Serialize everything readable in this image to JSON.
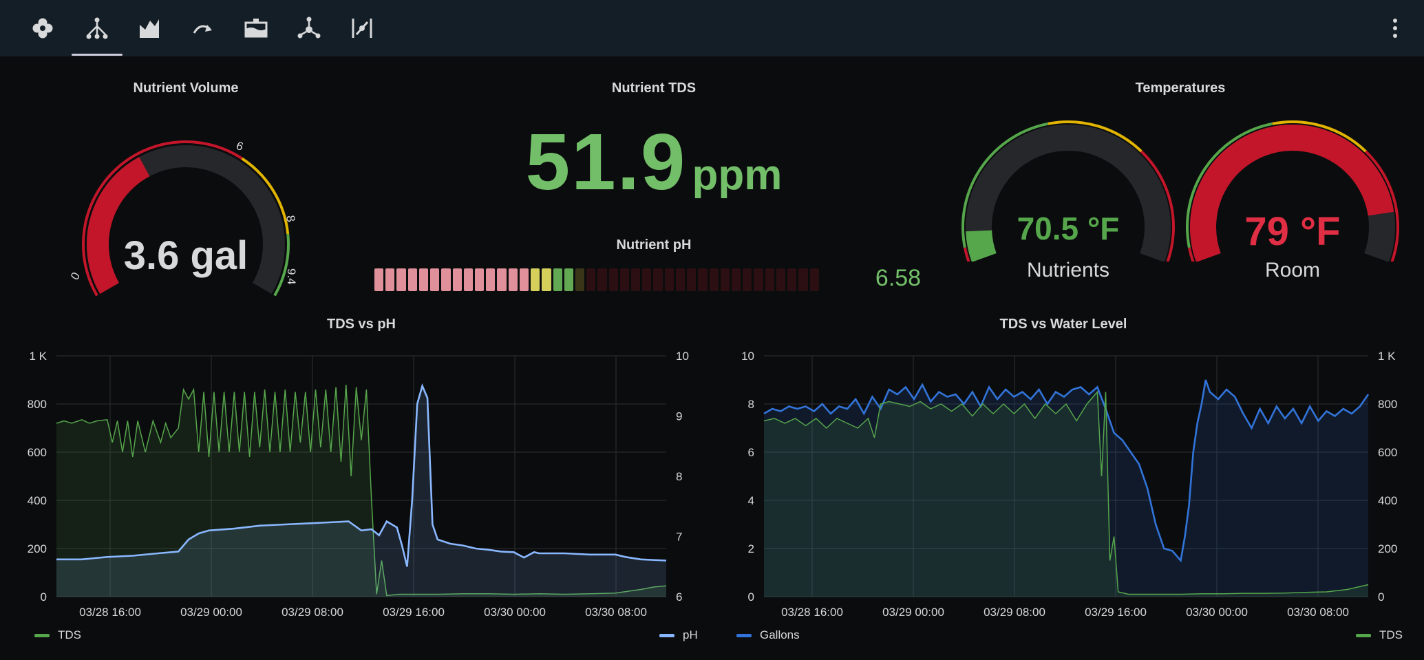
{
  "tabs": [
    {
      "icon": "flower-icon"
    },
    {
      "icon": "hierarchy-icon",
      "active": true
    },
    {
      "icon": "area-chart-icon"
    },
    {
      "icon": "redo-arrow-icon"
    },
    {
      "icon": "tank-icon"
    },
    {
      "icon": "network-hub-icon"
    },
    {
      "icon": "slash-needle-icon"
    }
  ],
  "panels": {
    "volume": {
      "title": "Nutrient Volume",
      "value": "3.6 gal",
      "value_color": "#e02f44",
      "gauge": {
        "min": 0,
        "max": 9.4,
        "value": 3.6,
        "ticks": [
          "0",
          "6",
          "8",
          "9.4"
        ]
      }
    },
    "tds": {
      "title": "Nutrient TDS",
      "value": "51.9",
      "unit": "ppm"
    },
    "ph": {
      "title": "Nutrient pH",
      "value": "6.58",
      "total_cells": 40,
      "filled_cells": 18,
      "cell_colors": {
        "red": "#e0909a",
        "yellow": "#d5cf5c",
        "green": "#63a954",
        "empty": "#2c0f12",
        "empty_yellow": "#3a3519"
      }
    },
    "temps": {
      "title": "Temperatures",
      "nutrients": {
        "value": "70.5 °F",
        "label": "Nutrients",
        "fraction": 0.08,
        "color": "#56a64b"
      },
      "room": {
        "value": "79 °F",
        "label": "Room",
        "fraction": 0.87,
        "color": "#c4162a"
      }
    }
  },
  "chart_data": [
    {
      "type": "line",
      "title": "TDS vs pH",
      "x_ticks": [
        "03/28 16:00",
        "03/29 00:00",
        "03/29 08:00",
        "03/29 16:00",
        "03/30 00:00",
        "03/30 08:00"
      ],
      "y_left_ticks": [
        "0",
        "200",
        "400",
        "600",
        "800",
        "1 K"
      ],
      "y_right_ticks": [
        "6",
        "7",
        "8",
        "9",
        "10"
      ],
      "ylim_left": [
        0,
        1000
      ],
      "ylim_right": [
        6,
        10
      ],
      "grid": true,
      "legend_position": "bottom",
      "series": [
        {
          "name": "TDS",
          "axis": "left",
          "color": "#56a64b",
          "style": "area",
          "points": [
            [
              0,
              720
            ],
            [
              0.3,
              730
            ],
            [
              0.6,
              720
            ],
            [
              1,
              735
            ],
            [
              1.3,
              720
            ],
            [
              1.6,
              730
            ],
            [
              2,
              735
            ],
            [
              2.2,
              640
            ],
            [
              2.4,
              730
            ],
            [
              2.6,
              600
            ],
            [
              2.8,
              730
            ],
            [
              3,
              580
            ],
            [
              3.2,
              730
            ],
            [
              3.5,
              600
            ],
            [
              3.8,
              730
            ],
            [
              4.1,
              640
            ],
            [
              4.3,
              720
            ],
            [
              4.5,
              660
            ],
            [
              4.8,
              700
            ],
            [
              5,
              860
            ],
            [
              5.2,
              820
            ],
            [
              5.4,
              860
            ],
            [
              5.6,
              600
            ],
            [
              5.8,
              850
            ],
            [
              6,
              580
            ],
            [
              6.2,
              850
            ],
            [
              6.4,
              600
            ],
            [
              6.6,
              850
            ],
            [
              6.8,
              600
            ],
            [
              7,
              850
            ],
            [
              7.2,
              600
            ],
            [
              7.4,
              850
            ],
            [
              7.6,
              580
            ],
            [
              7.8,
              850
            ],
            [
              8,
              620
            ],
            [
              8.2,
              860
            ],
            [
              8.4,
              600
            ],
            [
              8.6,
              850
            ],
            [
              8.8,
              600
            ],
            [
              9,
              860
            ],
            [
              9.2,
              600
            ],
            [
              9.4,
              850
            ],
            [
              9.6,
              640
            ],
            [
              9.8,
              850
            ],
            [
              10,
              600
            ],
            [
              10.2,
              860
            ],
            [
              10.4,
              620
            ],
            [
              10.6,
              860
            ],
            [
              10.8,
              600
            ],
            [
              11,
              870
            ],
            [
              11.2,
              560
            ],
            [
              11.4,
              880
            ],
            [
              11.6,
              500
            ],
            [
              11.8,
              870
            ],
            [
              12,
              650
            ],
            [
              12.2,
              860
            ],
            [
              12.4,
              400
            ],
            [
              12.6,
              10
            ],
            [
              12.8,
              150
            ],
            [
              13,
              5
            ],
            [
              13.5,
              10
            ],
            [
              14,
              10
            ],
            [
              15,
              10
            ],
            [
              16,
              12
            ],
            [
              17,
              12
            ],
            [
              18,
              10
            ],
            [
              19,
              12
            ],
            [
              20,
              10
            ],
            [
              21,
              12
            ],
            [
              22,
              15
            ],
            [
              23,
              30
            ],
            [
              23.5,
              40
            ],
            [
              24,
              45
            ]
          ]
        },
        {
          "name": "pH",
          "axis": "right",
          "color": "#8ab8ff",
          "style": "area",
          "points": [
            [
              0,
              6.62
            ],
            [
              1,
              6.62
            ],
            [
              1.5,
              6.64
            ],
            [
              2,
              6.66
            ],
            [
              3,
              6.68
            ],
            [
              4,
              6.72
            ],
            [
              4.8,
              6.75
            ],
            [
              5.2,
              6.95
            ],
            [
              5.6,
              7.05
            ],
            [
              6,
              7.1
            ],
            [
              7,
              7.13
            ],
            [
              8,
              7.18
            ],
            [
              9,
              7.2
            ],
            [
              10,
              7.22
            ],
            [
              11,
              7.24
            ],
            [
              11.5,
              7.25
            ],
            [
              12,
              7.1
            ],
            [
              12.4,
              7.12
            ],
            [
              12.7,
              7.02
            ],
            [
              13,
              7.25
            ],
            [
              13.4,
              7.15
            ],
            [
              13.6,
              6.85
            ],
            [
              13.8,
              6.5
            ],
            [
              14,
              7.6
            ],
            [
              14.2,
              9.2
            ],
            [
              14.4,
              9.5
            ],
            [
              14.6,
              9.3
            ],
            [
              14.8,
              7.2
            ],
            [
              15,
              6.95
            ],
            [
              15.5,
              6.88
            ],
            [
              16,
              6.85
            ],
            [
              16.5,
              6.8
            ],
            [
              17,
              6.78
            ],
            [
              17.5,
              6.75
            ],
            [
              18,
              6.74
            ],
            [
              18.4,
              6.65
            ],
            [
              18.8,
              6.74
            ],
            [
              19,
              6.72
            ],
            [
              20,
              6.72
            ],
            [
              21,
              6.7
            ],
            [
              22,
              6.7
            ],
            [
              22.4,
              6.66
            ],
            [
              23,
              6.62
            ],
            [
              24,
              6.6
            ]
          ]
        }
      ]
    },
    {
      "type": "line",
      "title": "TDS vs Water Level",
      "x_ticks": [
        "03/28 16:00",
        "03/29 00:00",
        "03/29 08:00",
        "03/29 16:00",
        "03/30 00:00",
        "03/30 08:00"
      ],
      "y_left_ticks": [
        "0",
        "2",
        "4",
        "6",
        "8",
        "10"
      ],
      "y_right_ticks": [
        "0",
        "200",
        "400",
        "600",
        "800",
        "1 K"
      ],
      "ylim_left": [
        0,
        10
      ],
      "ylim_right": [
        0,
        1000
      ],
      "grid": true,
      "legend_position": "bottom",
      "series": [
        {
          "name": "Gallons",
          "axis": "left",
          "color": "#3274d9",
          "style": "area",
          "points": [
            [
              0,
              7.6
            ],
            [
              0.4,
              7.8
            ],
            [
              0.8,
              7.7
            ],
            [
              1.2,
              7.9
            ],
            [
              1.6,
              7.8
            ],
            [
              2,
              7.9
            ],
            [
              2.4,
              7.7
            ],
            [
              2.8,
              8.0
            ],
            [
              3.2,
              7.6
            ],
            [
              3.6,
              7.9
            ],
            [
              4,
              7.8
            ],
            [
              4.4,
              8.2
            ],
            [
              4.8,
              7.6
            ],
            [
              5.2,
              8.3
            ],
            [
              5.6,
              7.8
            ],
            [
              6,
              8.6
            ],
            [
              6.4,
              8.4
            ],
            [
              6.8,
              8.7
            ],
            [
              7.2,
              8.2
            ],
            [
              7.6,
              8.8
            ],
            [
              8,
              8.1
            ],
            [
              8.4,
              8.5
            ],
            [
              8.8,
              8.3
            ],
            [
              9.2,
              8.4
            ],
            [
              9.6,
              8.0
            ],
            [
              10,
              8.5
            ],
            [
              10.4,
              7.9
            ],
            [
              10.8,
              8.7
            ],
            [
              11.2,
              8.2
            ],
            [
              11.6,
              8.6
            ],
            [
              12,
              8.3
            ],
            [
              12.4,
              8.5
            ],
            [
              12.8,
              8.2
            ],
            [
              13.2,
              8.6
            ],
            [
              13.6,
              8.0
            ],
            [
              14,
              8.5
            ],
            [
              14.4,
              8.3
            ],
            [
              14.8,
              8.6
            ],
            [
              15.2,
              8.7
            ],
            [
              15.6,
              8.4
            ],
            [
              16,
              8.7
            ],
            [
              16.4,
              7.8
            ],
            [
              16.8,
              6.8
            ],
            [
              17.2,
              6.5
            ],
            [
              17.6,
              6.0
            ],
            [
              18,
              5.5
            ],
            [
              18.4,
              4.5
            ],
            [
              18.8,
              3.0
            ],
            [
              19.2,
              2.0
            ],
            [
              19.6,
              1.9
            ],
            [
              20,
              1.5
            ],
            [
              20.2,
              2.5
            ],
            [
              20.4,
              3.8
            ],
            [
              20.6,
              6.0
            ],
            [
              20.8,
              7.2
            ],
            [
              21,
              8.0
            ],
            [
              21.2,
              9.0
            ],
            [
              21.4,
              8.5
            ],
            [
              21.8,
              8.2
            ],
            [
              22.2,
              8.6
            ],
            [
              22.6,
              8.3
            ],
            [
              23,
              7.6
            ],
            [
              23.4,
              7.0
            ],
            [
              23.8,
              7.8
            ],
            [
              24.2,
              7.2
            ],
            [
              24.6,
              7.9
            ],
            [
              25,
              7.4
            ],
            [
              25.4,
              7.8
            ],
            [
              25.8,
              7.2
            ],
            [
              26.2,
              7.9
            ],
            [
              26.6,
              7.3
            ],
            [
              27,
              7.7
            ],
            [
              27.4,
              7.5
            ],
            [
              27.8,
              7.8
            ],
            [
              28.2,
              7.6
            ],
            [
              28.6,
              7.9
            ],
            [
              29,
              8.4
            ]
          ]
        },
        {
          "name": "TDS",
          "axis": "right",
          "color": "#56a64b",
          "style": "area",
          "points": [
            [
              0,
              730
            ],
            [
              0.5,
              740
            ],
            [
              1,
              720
            ],
            [
              1.5,
              740
            ],
            [
              2,
              710
            ],
            [
              2.5,
              740
            ],
            [
              3,
              700
            ],
            [
              3.5,
              740
            ],
            [
              4,
              720
            ],
            [
              4.5,
              700
            ],
            [
              5,
              740
            ],
            [
              5.3,
              660
            ],
            [
              5.6,
              800
            ],
            [
              6,
              810
            ],
            [
              6.5,
              800
            ],
            [
              7,
              790
            ],
            [
              7.5,
              810
            ],
            [
              8,
              780
            ],
            [
              8.5,
              800
            ],
            [
              9,
              770
            ],
            [
              9.5,
              800
            ],
            [
              10,
              750
            ],
            [
              10.5,
              800
            ],
            [
              11,
              760
            ],
            [
              11.5,
              800
            ],
            [
              12,
              760
            ],
            [
              12.5,
              800
            ],
            [
              13,
              740
            ],
            [
              13.5,
              800
            ],
            [
              14,
              760
            ],
            [
              14.5,
              800
            ],
            [
              15,
              730
            ],
            [
              15.5,
              800
            ],
            [
              16,
              850
            ],
            [
              16.2,
              500
            ],
            [
              16.4,
              850
            ],
            [
              16.6,
              150
            ],
            [
              16.8,
              250
            ],
            [
              17,
              20
            ],
            [
              17.5,
              10
            ],
            [
              18,
              10
            ],
            [
              19,
              10
            ],
            [
              20,
              10
            ],
            [
              21,
              12
            ],
            [
              22,
              12
            ],
            [
              23,
              14
            ],
            [
              24,
              14
            ],
            [
              25,
              15
            ],
            [
              26,
              18
            ],
            [
              27,
              20
            ],
            [
              28,
              30
            ],
            [
              29,
              50
            ]
          ]
        }
      ]
    }
  ]
}
